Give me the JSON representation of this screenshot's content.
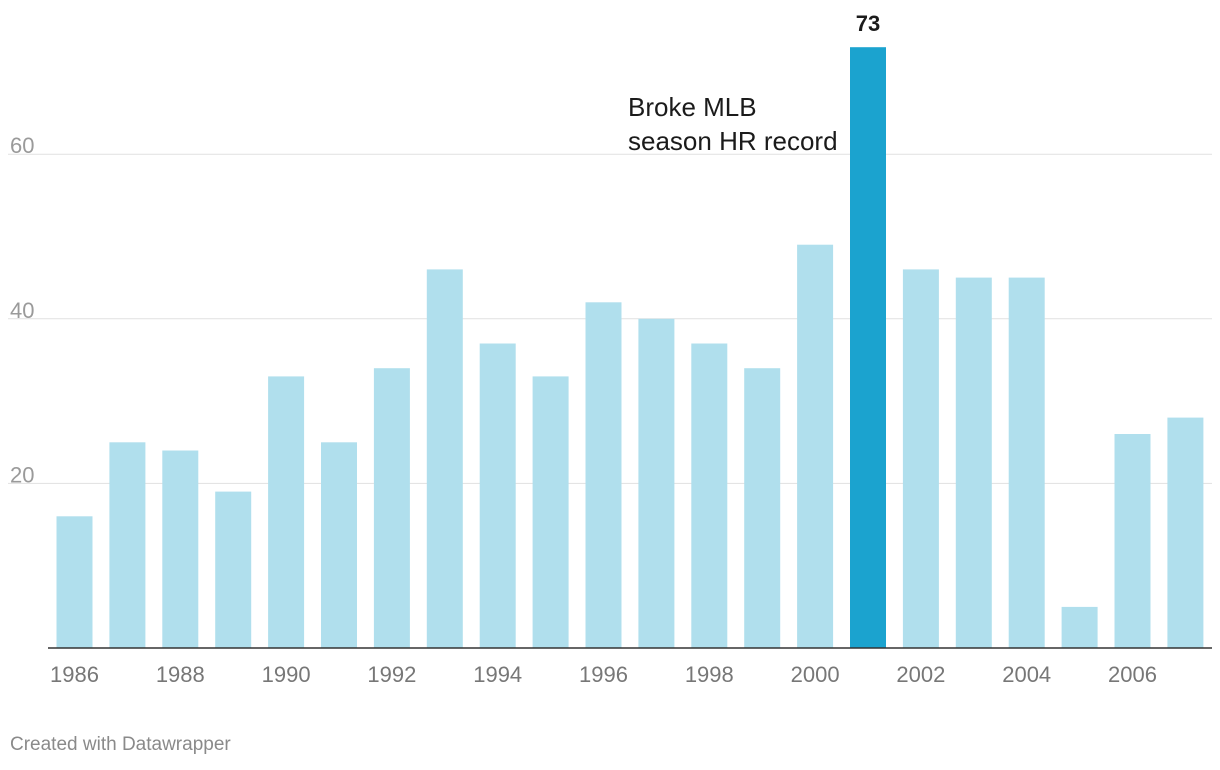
{
  "chart_data": {
    "type": "bar",
    "title": "",
    "xlabel": "",
    "ylabel": "",
    "ylim": [
      0,
      75
    ],
    "yticks": [
      20,
      40,
      60
    ],
    "categories": [
      "1986",
      "1987",
      "1988",
      "1989",
      "1990",
      "1991",
      "1992",
      "1993",
      "1994",
      "1995",
      "1996",
      "1997",
      "1998",
      "1999",
      "2000",
      "2001",
      "2002",
      "2003",
      "2004",
      "2005",
      "2006",
      "2007"
    ],
    "values": [
      16,
      25,
      24,
      19,
      33,
      25,
      34,
      46,
      37,
      33,
      42,
      40,
      37,
      34,
      49,
      73,
      46,
      45,
      45,
      5,
      26,
      28
    ],
    "x_tick_labels": [
      "1986",
      "1988",
      "1990",
      "1992",
      "1994",
      "1996",
      "1998",
      "2000",
      "2002",
      "2004",
      "2006"
    ],
    "highlight": {
      "category": "2001",
      "value_label": "73"
    },
    "annotation": {
      "lines": [
        "Broke MLB",
        "season HR record"
      ]
    },
    "colors": {
      "bar": "#b0dfed",
      "highlight": "#1ba3cf"
    }
  },
  "footer": {
    "credit": "Created with Datawrapper"
  }
}
